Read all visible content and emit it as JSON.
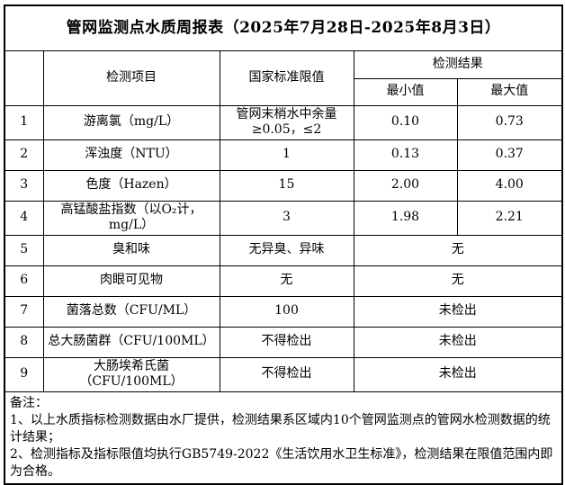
{
  "title": "管网监测点水质周报表（2025年7月28日-2025年8月3日）",
  "table": {
    "headers": {
      "index": "",
      "item": "检测项目",
      "limit": "国家标准限值",
      "result_group": "检测结果",
      "min": "最小值",
      "max": "最大值"
    },
    "rows": [
      {
        "no": "1",
        "item": "游离氯（mg/L）",
        "limit": "管网末梢水中余量≥0.05，≤2",
        "min": "0.10",
        "max": "0.73"
      },
      {
        "no": "2",
        "item": "浑浊度（NTU）",
        "limit": "1",
        "min": "0.13",
        "max": "0.37"
      },
      {
        "no": "3",
        "item": "色度（Hazen）",
        "limit": "15",
        "min": "2.00",
        "max": "4.00"
      },
      {
        "no": "4",
        "item": "高锰酸盐指数（以O₂计，mg/L）",
        "limit": "3",
        "min": "1.98",
        "max": "2.21"
      },
      {
        "no": "5",
        "item": "臭和味",
        "limit": "无异臭、异味",
        "result": "无"
      },
      {
        "no": "6",
        "item": "肉眼可见物",
        "limit": "无",
        "result": "无"
      },
      {
        "no": "7",
        "item": "菌落总数（CFU/ML）",
        "limit": "100",
        "result": "未检出"
      },
      {
        "no": "8",
        "item": "总大肠菌群（CFU/100ML）",
        "limit": "不得检出",
        "result": "未检出"
      },
      {
        "no": "9",
        "item": "大肠埃希氏菌（CFU/100ML）",
        "limit": "不得检出",
        "result": "未检出"
      }
    ]
  },
  "notes": {
    "label": "备注：",
    "items": [
      "1、以上水质指标检测数据由水厂提供，检测结果系区域内10个管网监测点的管网水检测数据的统计结果；",
      "2、检测指标及指标限值均执行GB5749-2022《生活饮用水卫生标准》，检测结果在限值范围内即为合格。"
    ]
  },
  "colors": {
    "border": "#000000",
    "background": "#ffffff",
    "text": "#000000"
  }
}
